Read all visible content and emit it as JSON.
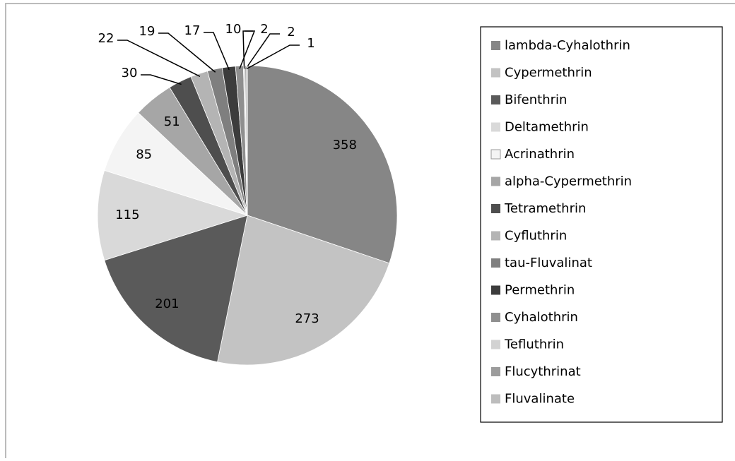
{
  "chart_data": {
    "type": "pie",
    "categories": [
      "lambda-Cyhalothrin",
      "Cypermethrin",
      "Bifenthrin",
      "Deltamethrin",
      "Acrinathrin",
      "alpha-Cypermethrin",
      "Tetramethrin",
      "Cyfluthrin",
      "tau-Fluvalinat",
      "Permethrin",
      "Cyhalothrin",
      "Tefluthrin",
      "Flucythrinat",
      "Fluvalinate"
    ],
    "values": [
      358,
      273,
      201,
      115,
      85,
      51,
      30,
      22,
      19,
      17,
      10,
      2,
      2,
      1
    ],
    "colors": [
      "#868686",
      "#c3c3c3",
      "#5a5a5a",
      "#d9d9d9",
      "#f4f4f4",
      "#a6a6a6",
      "#4e4e4e",
      "#b4b4b4",
      "#7f7f7f",
      "#3c3c3c",
      "#8f8f8f",
      "#d2d2d2",
      "#9c9c9c",
      "#bdbdbd"
    ],
    "legend": "right"
  }
}
